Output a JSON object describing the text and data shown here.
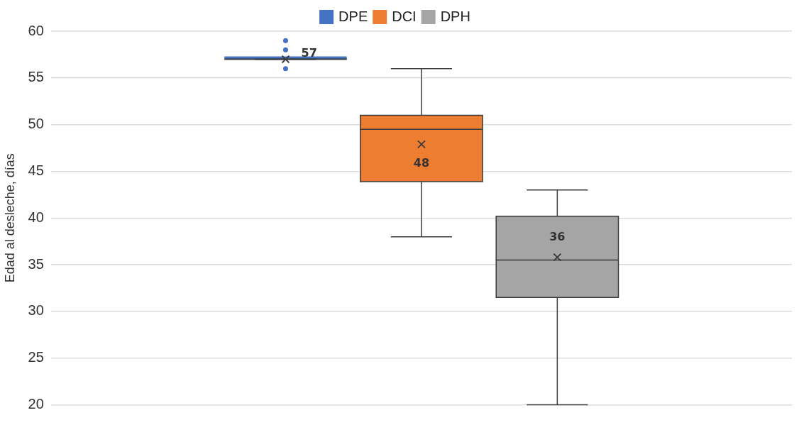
{
  "chart_data": {
    "type": "box",
    "ylabel": "Edad al desleche, días",
    "categories": [
      null
    ],
    "series": [
      {
        "name": "DPE",
        "color": "#4472c4",
        "boxes": [
          {
            "low": 57,
            "q1": 57,
            "median": 57,
            "q3": 57,
            "high": 57,
            "mean": 57,
            "outliers": [
              56,
              58,
              59
            ]
          }
        ]
      },
      {
        "name": "DCI",
        "color": "#ed7d31",
        "boxes": [
          {
            "low": 38,
            "q1": 43.9,
            "median": 49.5,
            "q3": 51,
            "high": 56,
            "mean": 47.9
          }
        ]
      },
      {
        "name": "DPH",
        "color": "#a5a5a5",
        "boxes": [
          {
            "low": 20,
            "q1": 31.5,
            "median": 35.5,
            "q3": 40.2,
            "high": 43,
            "mean": 35.8
          }
        ]
      }
    ],
    "annotations": [
      "57",
      "48",
      "36"
    ],
    "ylim": [
      20,
      60
    ],
    "yticks": [
      20,
      25,
      30,
      35,
      40,
      45,
      50,
      55,
      60
    ],
    "grid": "y",
    "legend": "top"
  }
}
